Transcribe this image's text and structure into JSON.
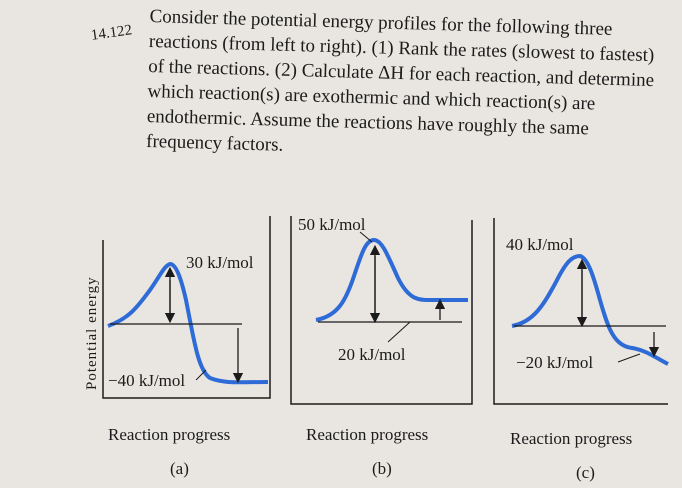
{
  "problem": {
    "number": "14.122",
    "text": "Consider the potential energy profiles for the following three reactions (from left to right). (1) Rank the rates (slowest to fastest) of the reactions. (2) Calculate ΔH for each reaction, and determine which reaction(s) are exothermic and which reaction(s) are endothermic. Assume the reactions have roughly the same frequency factors."
  },
  "axis": {
    "ylabel": "Potential energy",
    "xlabel": "Reaction progress"
  },
  "colors": {
    "curve": "#2e6bd6",
    "ink": "#1b1b1b",
    "paper": "#e9e6e1"
  },
  "profiles": [
    {
      "panel": "(a)",
      "activation_label": "30 kJ/mol",
      "delta_label": "−40 kJ/mol",
      "xlabel": "Reaction progress"
    },
    {
      "panel": "(b)",
      "activation_label": "50 kJ/mol",
      "delta_label": "20 kJ/mol",
      "xlabel": "Reaction progress"
    },
    {
      "panel": "(c)",
      "activation_label": "40 kJ/mol",
      "delta_label": "−20 kJ/mol",
      "xlabel": "Reaction progress"
    }
  ]
}
